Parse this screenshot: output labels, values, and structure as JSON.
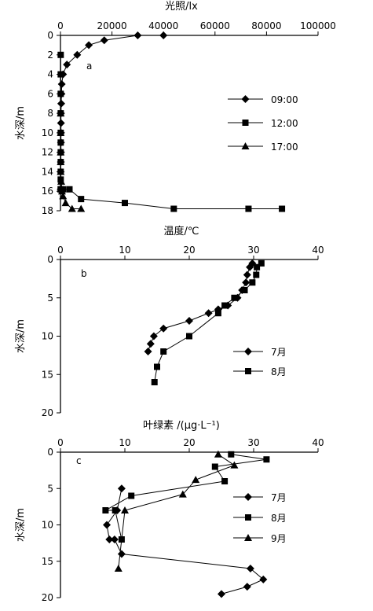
{
  "chart_data": [
    {
      "type": "line",
      "panel_label": "a",
      "xlabel": "光照/lx",
      "ylabel": "水深/m",
      "xlim": [
        0,
        100000
      ],
      "ylim": [
        0,
        18
      ],
      "y_inverted": true,
      "x_axis_position": "top",
      "xticks": [
        0,
        20000,
        40000,
        60000,
        80000,
        100000
      ],
      "xtick_labels": [
        "0",
        "20000",
        "40000",
        "60000",
        "80000",
        "100000"
      ],
      "yticks": [
        0,
        2,
        4,
        6,
        8,
        10,
        12,
        14,
        16,
        18
      ],
      "ytick_labels": [
        "0",
        "2",
        "4",
        "6",
        "8",
        "10",
        "12",
        "14",
        "16",
        "18"
      ],
      "legend_position": "right",
      "series": [
        {
          "name": "09:00",
          "marker": "diamond",
          "x": [
            40000,
            30000,
            17000,
            11000,
            6500,
            2500,
            1000,
            500,
            400,
            300,
            200,
            200,
            200,
            200,
            200,
            150,
            100,
            100
          ],
          "y": [
            0,
            0,
            0.5,
            1,
            2,
            3,
            4,
            5,
            6,
            7,
            8,
            9,
            10,
            11,
            12,
            13,
            14,
            15.8
          ]
        },
        {
          "name": "12:00",
          "marker": "square",
          "x": [
            100,
            100,
            100,
            100,
            100,
            100,
            100,
            100,
            100,
            100,
            100,
            100,
            1000,
            3500,
            8000,
            25000,
            44000,
            73000,
            86000
          ],
          "y": [
            2,
            4,
            6,
            8,
            10,
            11,
            12,
            13,
            14,
            14.8,
            15.8,
            15.8,
            15.8,
            15.8,
            16.8,
            17.2,
            17.8,
            17.8,
            17.8
          ]
        },
        {
          "name": "17:00",
          "marker": "triangle",
          "x": [
            100,
            100,
            100,
            100,
            100,
            300,
            600,
            1000,
            2000,
            4500,
            8000
          ],
          "y": [
            8,
            10,
            12,
            13,
            14,
            15,
            16,
            16.5,
            17.2,
            17.8,
            17.8
          ]
        }
      ]
    },
    {
      "type": "line",
      "panel_label": "b",
      "xlabel": "温度/℃",
      "ylabel": "水深/m",
      "xlim": [
        0,
        40
      ],
      "ylim": [
        0,
        20
      ],
      "y_inverted": true,
      "x_axis_position": "top",
      "xticks": [
        0,
        10,
        20,
        30,
        40
      ],
      "xtick_labels": [
        "0",
        "10",
        "20",
        "30",
        "40"
      ],
      "yticks": [
        0,
        5,
        10,
        15,
        20
      ],
      "ytick_labels": [
        "0",
        "5",
        "10",
        "15",
        "20"
      ],
      "legend_position": "right",
      "series": [
        {
          "name": "7月",
          "marker": "diamond",
          "x": [
            29.8,
            29.4,
            29.0,
            28.8,
            28.2,
            27.5,
            26.0,
            24.5,
            23.0,
            20.0,
            16.0,
            14.5,
            14.0,
            13.6
          ],
          "y": [
            0.5,
            1,
            2,
            3,
            4,
            5,
            6,
            6.5,
            7,
            8,
            9,
            10,
            11,
            12
          ]
        },
        {
          "name": "8月",
          "marker": "square",
          "x": [
            31.2,
            30.5,
            30.4,
            29.8,
            28.6,
            27.0,
            25.5,
            24.5,
            20.0,
            16.0,
            15.0,
            14.6
          ],
          "y": [
            0.5,
            1,
            2,
            3,
            4,
            5,
            6,
            7,
            10,
            12,
            14,
            16
          ]
        }
      ]
    },
    {
      "type": "line",
      "panel_label": "c",
      "xlabel": "叶绿素 /(μg·L⁻¹)",
      "ylabel": "水深/m",
      "xlim": [
        0,
        40
      ],
      "ylim": [
        0,
        20
      ],
      "y_inverted": true,
      "x_axis_position": "top",
      "xticks": [
        0,
        10,
        20,
        30,
        40
      ],
      "xtick_labels": [
        "0",
        "10",
        "20",
        "30",
        "40"
      ],
      "yticks": [
        0,
        5,
        10,
        15,
        20
      ],
      "ytick_labels": [
        "0",
        "5",
        "10",
        "15",
        "20"
      ],
      "legend_position": "right",
      "series": [
        {
          "name": "7月",
          "marker": "diamond",
          "x": [
            9.5,
            8.8,
            7.2,
            7.6,
            8.4,
            9.5,
            29.5,
            31.5,
            29.0,
            25.0
          ],
          "y": [
            5,
            8,
            10,
            12,
            12,
            14,
            16,
            17.5,
            18.5,
            19.5
          ]
        },
        {
          "name": "8月",
          "marker": "square",
          "x": [
            26.5,
            32.0,
            24.0,
            25.5,
            11.0,
            7.0,
            8.5,
            9.5
          ],
          "y": [
            0.3,
            1,
            2,
            4,
            6,
            8,
            8,
            12
          ]
        },
        {
          "name": "9月",
          "marker": "triangle",
          "x": [
            24.5,
            27.0,
            21.0,
            19.0,
            10.0,
            9.0
          ],
          "y": [
            0.3,
            1.8,
            3.8,
            5.8,
            8,
            16
          ]
        }
      ]
    }
  ]
}
